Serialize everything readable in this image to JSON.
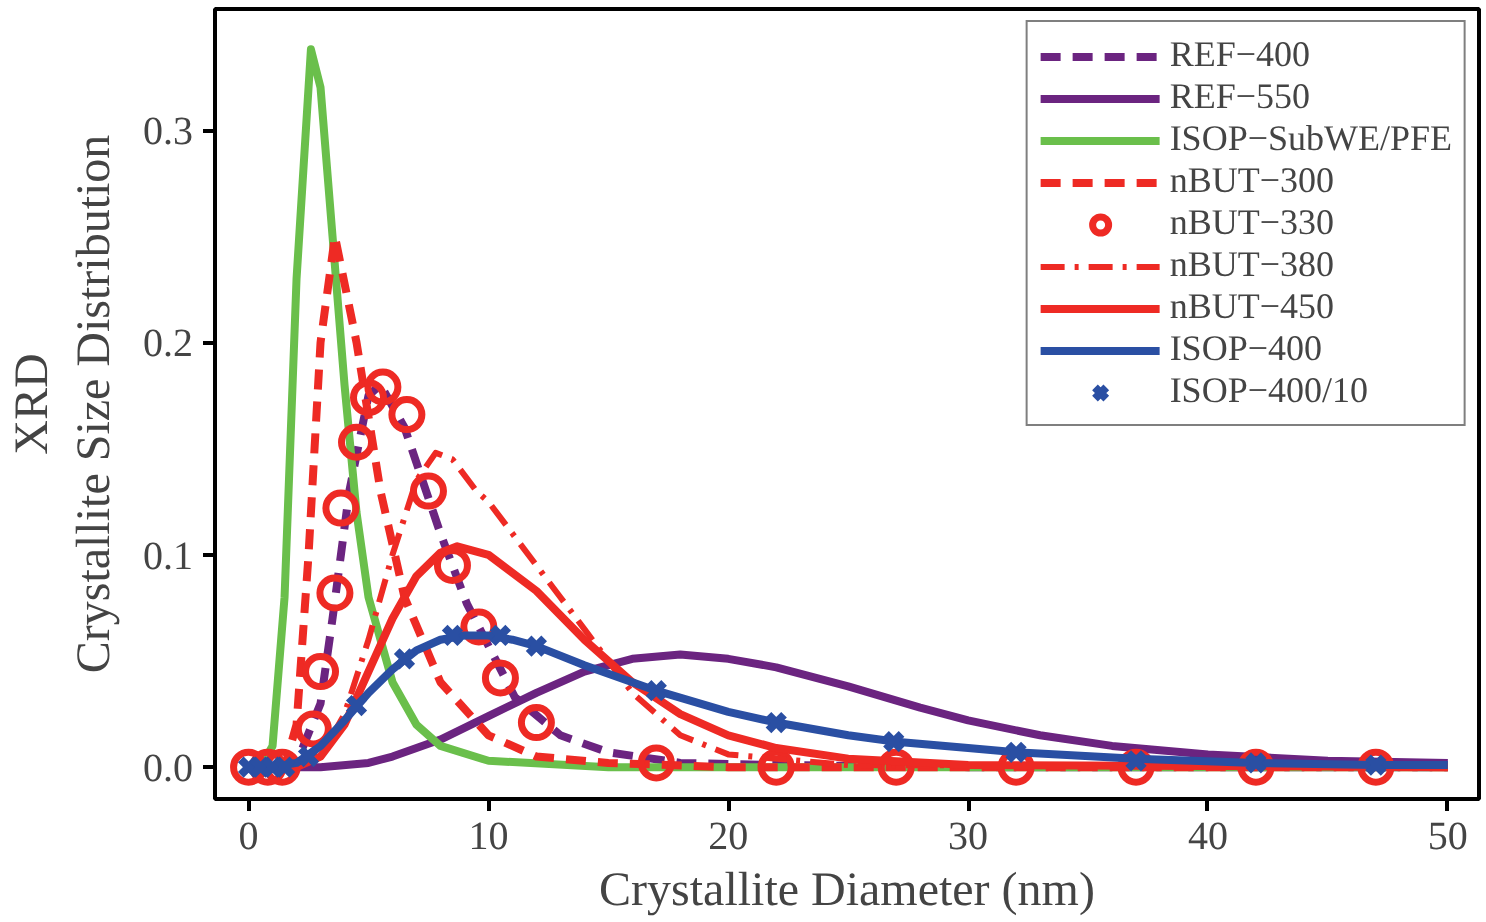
{
  "chart_data": {
    "type": "line",
    "xlabel": "Crystallite Diameter (nm)",
    "ylabel": "XRD\nCrystallite Size Distribution",
    "xlim": [
      -1.4,
      51.3
    ],
    "ylim": [
      -0.015,
      0.357
    ],
    "xticks": [
      0,
      10,
      20,
      30,
      40,
      50
    ],
    "yticks": [
      {
        "value": 0,
        "label": "0.0"
      },
      {
        "value": 0.1,
        "label": "0.1"
      },
      {
        "value": 0.2,
        "label": "0.2"
      },
      {
        "value": 0.3,
        "label": "0.3"
      }
    ],
    "grid": false,
    "legend": "top right",
    "series": [
      {
        "name": "REF−400",
        "color": "#6b2480",
        "line_style": "dashed",
        "x": [
          0,
          2,
          3,
          3.5,
          4.2,
          5,
          5.5,
          6.5,
          8,
          9.1,
          11.1,
          13,
          15,
          18,
          22,
          30,
          50
        ],
        "values": [
          0,
          0.002,
          0.03,
          0.07,
          0.13,
          0.175,
          0.18,
          0.16,
          0.11,
          0.077,
          0.033,
          0.015,
          0.007,
          0.002,
          0.001,
          0,
          0
        ]
      },
      {
        "name": "REF−550",
        "color": "#6b2480",
        "line_style": "solid",
        "x": [
          0,
          3,
          5,
          6,
          8,
          10,
          12,
          14,
          16,
          18,
          20,
          22,
          25,
          28,
          30,
          33,
          36,
          40,
          45,
          50
        ],
        "values": [
          0,
          0,
          0.002,
          0.005,
          0.013,
          0.024,
          0.035,
          0.045,
          0.051,
          0.053,
          0.051,
          0.047,
          0.038,
          0.028,
          0.022,
          0.015,
          0.01,
          0.006,
          0.003,
          0.002
        ]
      },
      {
        "name": "ISOP−SubWE/PFE",
        "color": "#6abf4b",
        "line_style": "solid",
        "x": [
          0.5,
          1,
          1.5,
          2,
          2.6,
          3,
          3.5,
          4,
          4.5,
          5,
          6,
          7,
          8,
          10,
          15,
          50
        ],
        "values": [
          0,
          0.01,
          0.08,
          0.23,
          0.338,
          0.32,
          0.25,
          0.18,
          0.12,
          0.08,
          0.04,
          0.02,
          0.01,
          0.003,
          0,
          0
        ]
      },
      {
        "name": "nBUT−300",
        "color": "#ee2a24",
        "line_style": "dashed",
        "x": [
          0,
          1.5,
          2,
          2.5,
          3,
          3.6,
          4.5,
          5.5,
          6.5,
          8,
          10,
          12,
          15,
          20,
          50
        ],
        "values": [
          0,
          0,
          0.02,
          0.1,
          0.2,
          0.25,
          0.2,
          0.13,
          0.08,
          0.04,
          0.015,
          0.005,
          0.002,
          0,
          0
        ]
      },
      {
        "name": "nBUT−330",
        "color": "#ee2a24",
        "type": "scatter",
        "marker": "circle",
        "x": [
          0,
          0.8,
          1.4,
          2.7,
          3.0,
          3.6,
          3.85,
          4.5,
          5,
          5.6,
          6.6,
          7.5,
          8.5,
          9.6,
          10.5,
          12,
          17,
          22,
          27,
          32,
          37,
          42,
          47
        ],
        "values": [
          0,
          0,
          0,
          0.018,
          0.045,
          0.082,
          0.122,
          0.153,
          0.174,
          0.179,
          0.166,
          0.13,
          0.095,
          0.066,
          0.042,
          0.021,
          0.002,
          0,
          0,
          0,
          0,
          0,
          0
        ]
      },
      {
        "name": "nBUT−380",
        "color": "#ee2a24",
        "line_style": "dashdot",
        "x": [
          0,
          2,
          3,
          4,
          5,
          6,
          7,
          7.8,
          8.5,
          9.5,
          10,
          11,
          12,
          13,
          14,
          15,
          16,
          18,
          20,
          25,
          50
        ],
        "values": [
          0,
          0,
          0.005,
          0.025,
          0.06,
          0.1,
          0.135,
          0.148,
          0.145,
          0.13,
          0.125,
          0.11,
          0.095,
          0.08,
          0.065,
          0.05,
          0.035,
          0.015,
          0.006,
          0.001,
          0
        ]
      },
      {
        "name": "nBUT−450",
        "color": "#ee2a24",
        "line_style": "solid",
        "x": [
          0,
          2,
          3,
          4,
          5,
          6,
          7,
          8,
          8.7,
          10,
          12,
          14,
          16,
          18,
          20,
          22,
          25,
          30,
          50
        ],
        "values": [
          0,
          0,
          0.005,
          0.02,
          0.045,
          0.07,
          0.09,
          0.101,
          0.104,
          0.1,
          0.083,
          0.06,
          0.04,
          0.025,
          0.015,
          0.009,
          0.004,
          0.001,
          0
        ]
      },
      {
        "name": "ISOP−400",
        "color": "#2a4fa3",
        "line_style": "solid",
        "x": [
          0,
          1,
          2,
          3,
          4,
          5,
          6,
          7,
          8,
          9,
          10,
          11,
          12,
          14,
          17,
          20,
          22,
          25,
          27,
          30,
          32,
          37,
          42,
          47,
          50
        ],
        "values": [
          0,
          0,
          0.002,
          0.01,
          0.022,
          0.035,
          0.046,
          0.055,
          0.06,
          0.062,
          0.062,
          0.06,
          0.057,
          0.048,
          0.036,
          0.026,
          0.021,
          0.015,
          0.012,
          0.009,
          0.007,
          0.004,
          0.002,
          0.001,
          0.001
        ]
      },
      {
        "name": "ISOP−400/10",
        "color": "#2a4fa3",
        "type": "scatter",
        "marker": "cross",
        "x": [
          0,
          0.5,
          1,
          1.5,
          2.5,
          4.5,
          6.5,
          8.5,
          10.5,
          12,
          17,
          22,
          26.9,
          32,
          37,
          42,
          47
        ],
        "values": [
          0,
          0,
          0,
          0,
          0.005,
          0.029,
          0.051,
          0.062,
          0.062,
          0.057,
          0.036,
          0.021,
          0.012,
          0.007,
          0.003,
          0.002,
          0.001
        ]
      }
    ]
  }
}
